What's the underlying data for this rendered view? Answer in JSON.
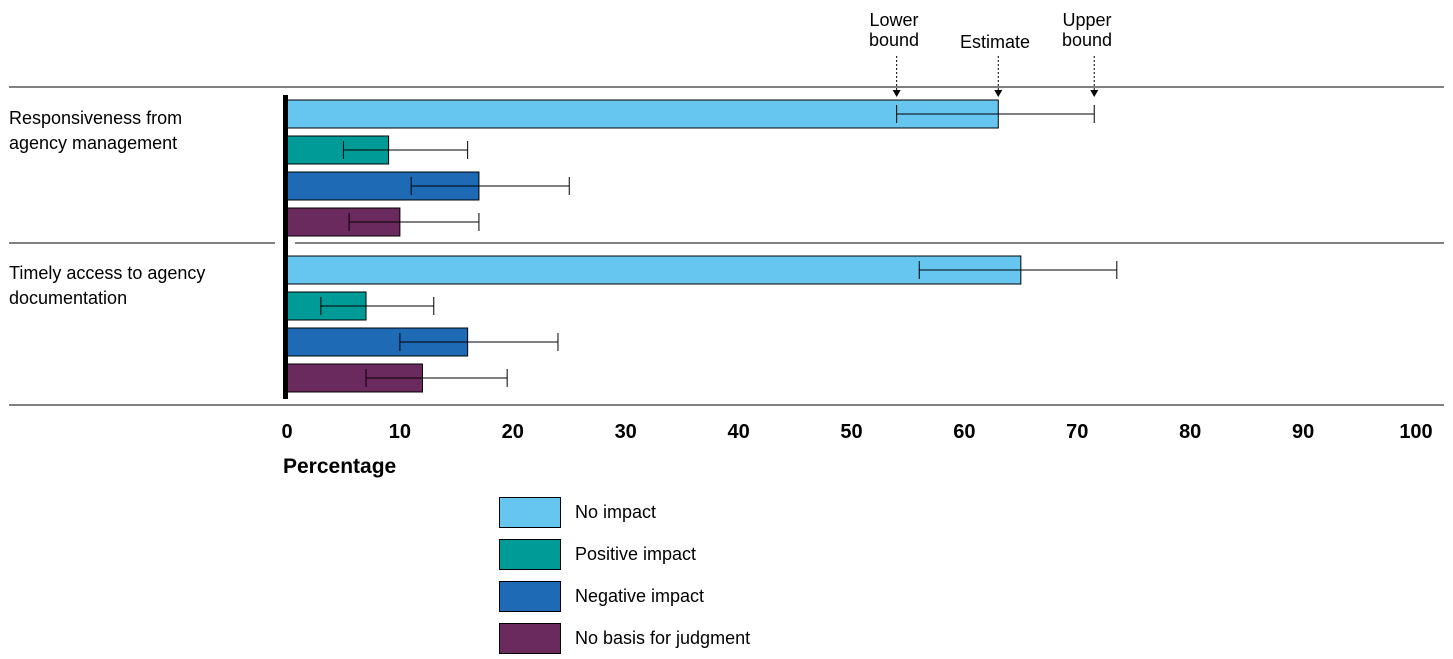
{
  "chart_data": {
    "type": "bar",
    "orientation": "horizontal",
    "categories": [
      "Responsiveness from\nagency management",
      "Timely access to agency\ndocumentation"
    ],
    "series": [
      {
        "name": "No impact",
        "color": "#66c6ef",
        "values": [
          63,
          65
        ],
        "lower": [
          54,
          56
        ],
        "upper": [
          71.5,
          73.5
        ]
      },
      {
        "name": "Positive impact",
        "color": "#009b96",
        "values": [
          9,
          7
        ],
        "lower": [
          5,
          3
        ],
        "upper": [
          16,
          13
        ]
      },
      {
        "name": "Negative impact",
        "color": "#1e6ab4",
        "values": [
          17,
          16
        ],
        "lower": [
          11,
          10
        ],
        "upper": [
          25,
          24
        ]
      },
      {
        "name": "No basis for judgment",
        "color": "#6b2a5e",
        "values": [
          10,
          12
        ],
        "lower": [
          5.5,
          7
        ],
        "upper": [
          17,
          19.5
        ]
      }
    ],
    "xlabel": "Percentage",
    "xlim": [
      0,
      100
    ],
    "xticks": [
      "0",
      "10",
      "20",
      "30",
      "40",
      "50",
      "60",
      "70",
      "80",
      "90",
      "100"
    ],
    "error_key": {
      "lower": "Lower\nbound",
      "estimate": "Estimate",
      "upper": "Upper\nbound"
    }
  }
}
